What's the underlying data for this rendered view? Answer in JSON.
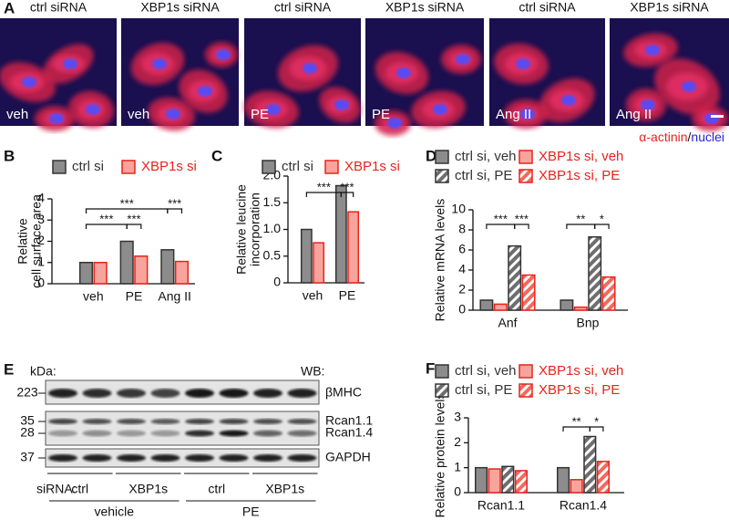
{
  "panel_a": {
    "label": "A",
    "images": [
      {
        "title": "ctrl siRNA",
        "condition": "veh"
      },
      {
        "title": "XBP1s siRNA",
        "condition": "veh"
      },
      {
        "title": "ctrl siRNA",
        "condition": "PE"
      },
      {
        "title": "XBP1s siRNA",
        "condition": "PE"
      },
      {
        "title": "ctrl siRNA",
        "condition": "Ang II"
      },
      {
        "title": "XBP1s siRNA",
        "condition": "Ang II"
      }
    ],
    "stain": [
      "α-actinin",
      "/",
      "nuclei"
    ]
  },
  "chart_data": [
    {
      "type": "bar",
      "label": "B",
      "ylabel": [
        "Relative",
        "cell surface area"
      ],
      "categories": [
        "veh",
        "PE",
        "Ang II"
      ],
      "series": [
        {
          "name": "ctrl si",
          "color": "#333333",
          "fill": "#8c8c8c",
          "hatch": false,
          "values": [
            1.0,
            2.0,
            1.6
          ]
        },
        {
          "name": "XBP1s si",
          "color": "#e8231c",
          "fill": "#f7a59c",
          "hatch": false,
          "values": [
            1.0,
            1.3,
            1.05
          ]
        }
      ],
      "ylim": [
        0,
        4
      ],
      "yticks": [
        0,
        1,
        2,
        3,
        4
      ],
      "annotations": [
        "***",
        "***",
        "***",
        "***"
      ]
    },
    {
      "type": "bar",
      "label": "C",
      "ylabel": [
        "Relative leucine",
        "incorporation"
      ],
      "categories": [
        "veh",
        "PE"
      ],
      "series": [
        {
          "name": "ctrl si",
          "color": "#333333",
          "fill": "#8c8c8c",
          "hatch": false,
          "values": [
            1.0,
            1.82
          ]
        },
        {
          "name": "XBP1s si",
          "color": "#e8231c",
          "fill": "#f7a59c",
          "hatch": false,
          "values": [
            0.75,
            1.33
          ]
        }
      ],
      "ylim": [
        0,
        2
      ],
      "yticks": [
        0,
        0.5,
        {
          "value": 1,
          "label": "1.0"
        },
        1.5,
        {
          "value": 2,
          "label": "2.0"
        }
      ],
      "annotations": [
        "***",
        "***"
      ]
    },
    {
      "type": "bar",
      "label": "D",
      "ylabel": [
        "Relative mRNA levels"
      ],
      "categories": [
        "Anf",
        "Bnp"
      ],
      "series": [
        {
          "name": "ctrl si, veh",
          "color": "#333333",
          "fill": "#8c8c8c",
          "hatch": false,
          "values": [
            1.0,
            1.0
          ]
        },
        {
          "name": "XBP1s si, veh",
          "color": "#e8231c",
          "fill": "#f7a59c",
          "hatch": false,
          "values": [
            0.6,
            0.3
          ]
        },
        {
          "name": "ctrl si, PE",
          "color": "#333333",
          "fill": "#8c8c8c",
          "hatch": true,
          "values": [
            6.4,
            7.3
          ]
        },
        {
          "name": "XBP1s si, PE",
          "color": "#e8231c",
          "fill": "#f26a5e",
          "hatch": true,
          "values": [
            3.5,
            3.3
          ]
        }
      ],
      "ylim": [
        0,
        10
      ],
      "yticks": [
        0,
        2,
        4,
        6,
        8,
        10
      ],
      "annotations": [
        "***",
        "***",
        "**",
        "*"
      ]
    },
    {
      "type": "bar",
      "label": "F",
      "ylabel": [
        "Relative protein levels"
      ],
      "categories": [
        "Rcan1.1",
        "Rcan1.4"
      ],
      "series": [
        {
          "name": "ctrl si, veh",
          "color": "#333333",
          "fill": "#8c8c8c",
          "hatch": false,
          "values": [
            1.0,
            1.0
          ]
        },
        {
          "name": "XBP1s si, veh",
          "color": "#e8231c",
          "fill": "#f7a59c",
          "hatch": false,
          "values": [
            0.95,
            0.52
          ]
        },
        {
          "name": "ctrl si, PE",
          "color": "#333333",
          "fill": "#8c8c8c",
          "hatch": true,
          "values": [
            1.05,
            2.25
          ]
        },
        {
          "name": "XBP1s si, PE",
          "color": "#e8231c",
          "fill": "#f26a5e",
          "hatch": true,
          "values": [
            0.88,
            1.25
          ]
        }
      ],
      "ylim": [
        0,
        3
      ],
      "yticks": [
        0,
        1,
        2,
        3
      ],
      "annotations": [
        "**",
        "*"
      ]
    }
  ],
  "panel_e": {
    "label": "E",
    "kda_title": "kDa:",
    "wb_title": "WB:",
    "markers": [
      "223",
      "35",
      "28",
      "37"
    ],
    "blots": [
      "βMHC",
      "Rcan1.1",
      "Rcan1.4",
      "GAPDH"
    ],
    "sirna_title": "siRNA:",
    "sirna": [
      "ctrl",
      "XBP1s",
      "ctrl",
      "XBP1s"
    ],
    "treatments": [
      "vehicle",
      "PE"
    ]
  }
}
